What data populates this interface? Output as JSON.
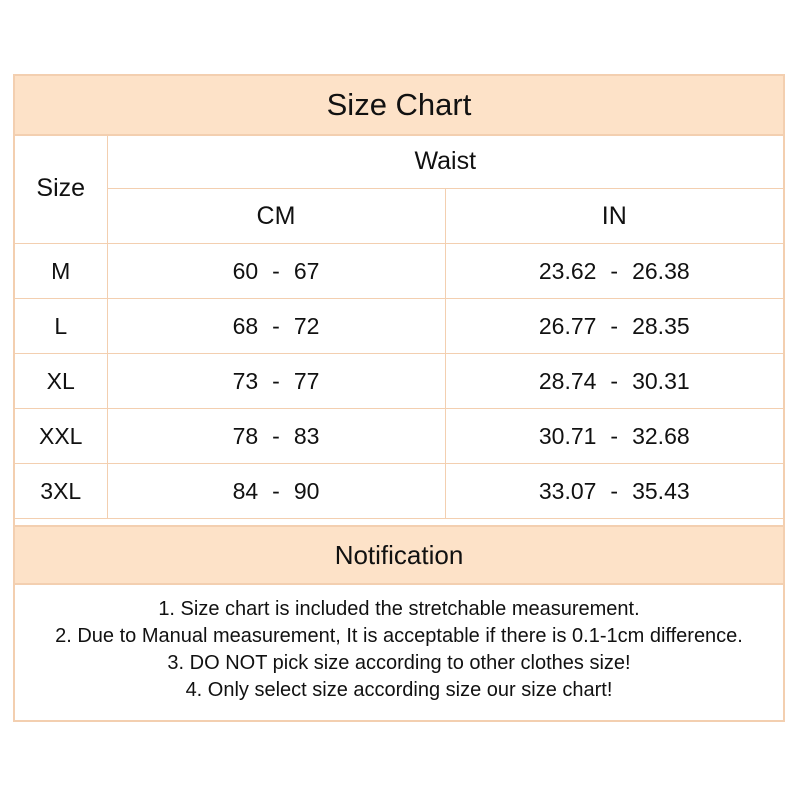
{
  "title": "Size Chart",
  "headers": {
    "size": "Size",
    "group": "Waist",
    "cm": "CM",
    "in": "IN"
  },
  "rows": [
    {
      "size": "M",
      "cm_min": "60",
      "cm_max": "67",
      "in_min": "23.62",
      "in_max": "26.38"
    },
    {
      "size": "L",
      "cm_min": "68",
      "cm_max": "72",
      "in_min": "26.77",
      "in_max": "28.35"
    },
    {
      "size": "XL",
      "cm_min": "73",
      "cm_max": "77",
      "in_min": "28.74",
      "in_max": "30.31"
    },
    {
      "size": "XXL",
      "cm_min": "78",
      "cm_max": "83",
      "in_min": "30.71",
      "in_max": "32.68"
    },
    {
      "size": "3XL",
      "cm_min": "84",
      "cm_max": "90",
      "in_min": "33.07",
      "in_max": "35.43"
    }
  ],
  "range_separator": "-",
  "notification": {
    "title": "Notification",
    "items": [
      "1. Size chart is included the stretchable measurement.",
      "2. Due to Manual measurement, It is acceptable if there is 0.1-1cm difference.",
      "3. DO NOT pick size according to other clothes size!",
      "4. Only select size according size our size chart!"
    ]
  },
  "colors": {
    "header_fill": "#fde2c8",
    "border": "#f3cfb0",
    "text": "#111111"
  }
}
